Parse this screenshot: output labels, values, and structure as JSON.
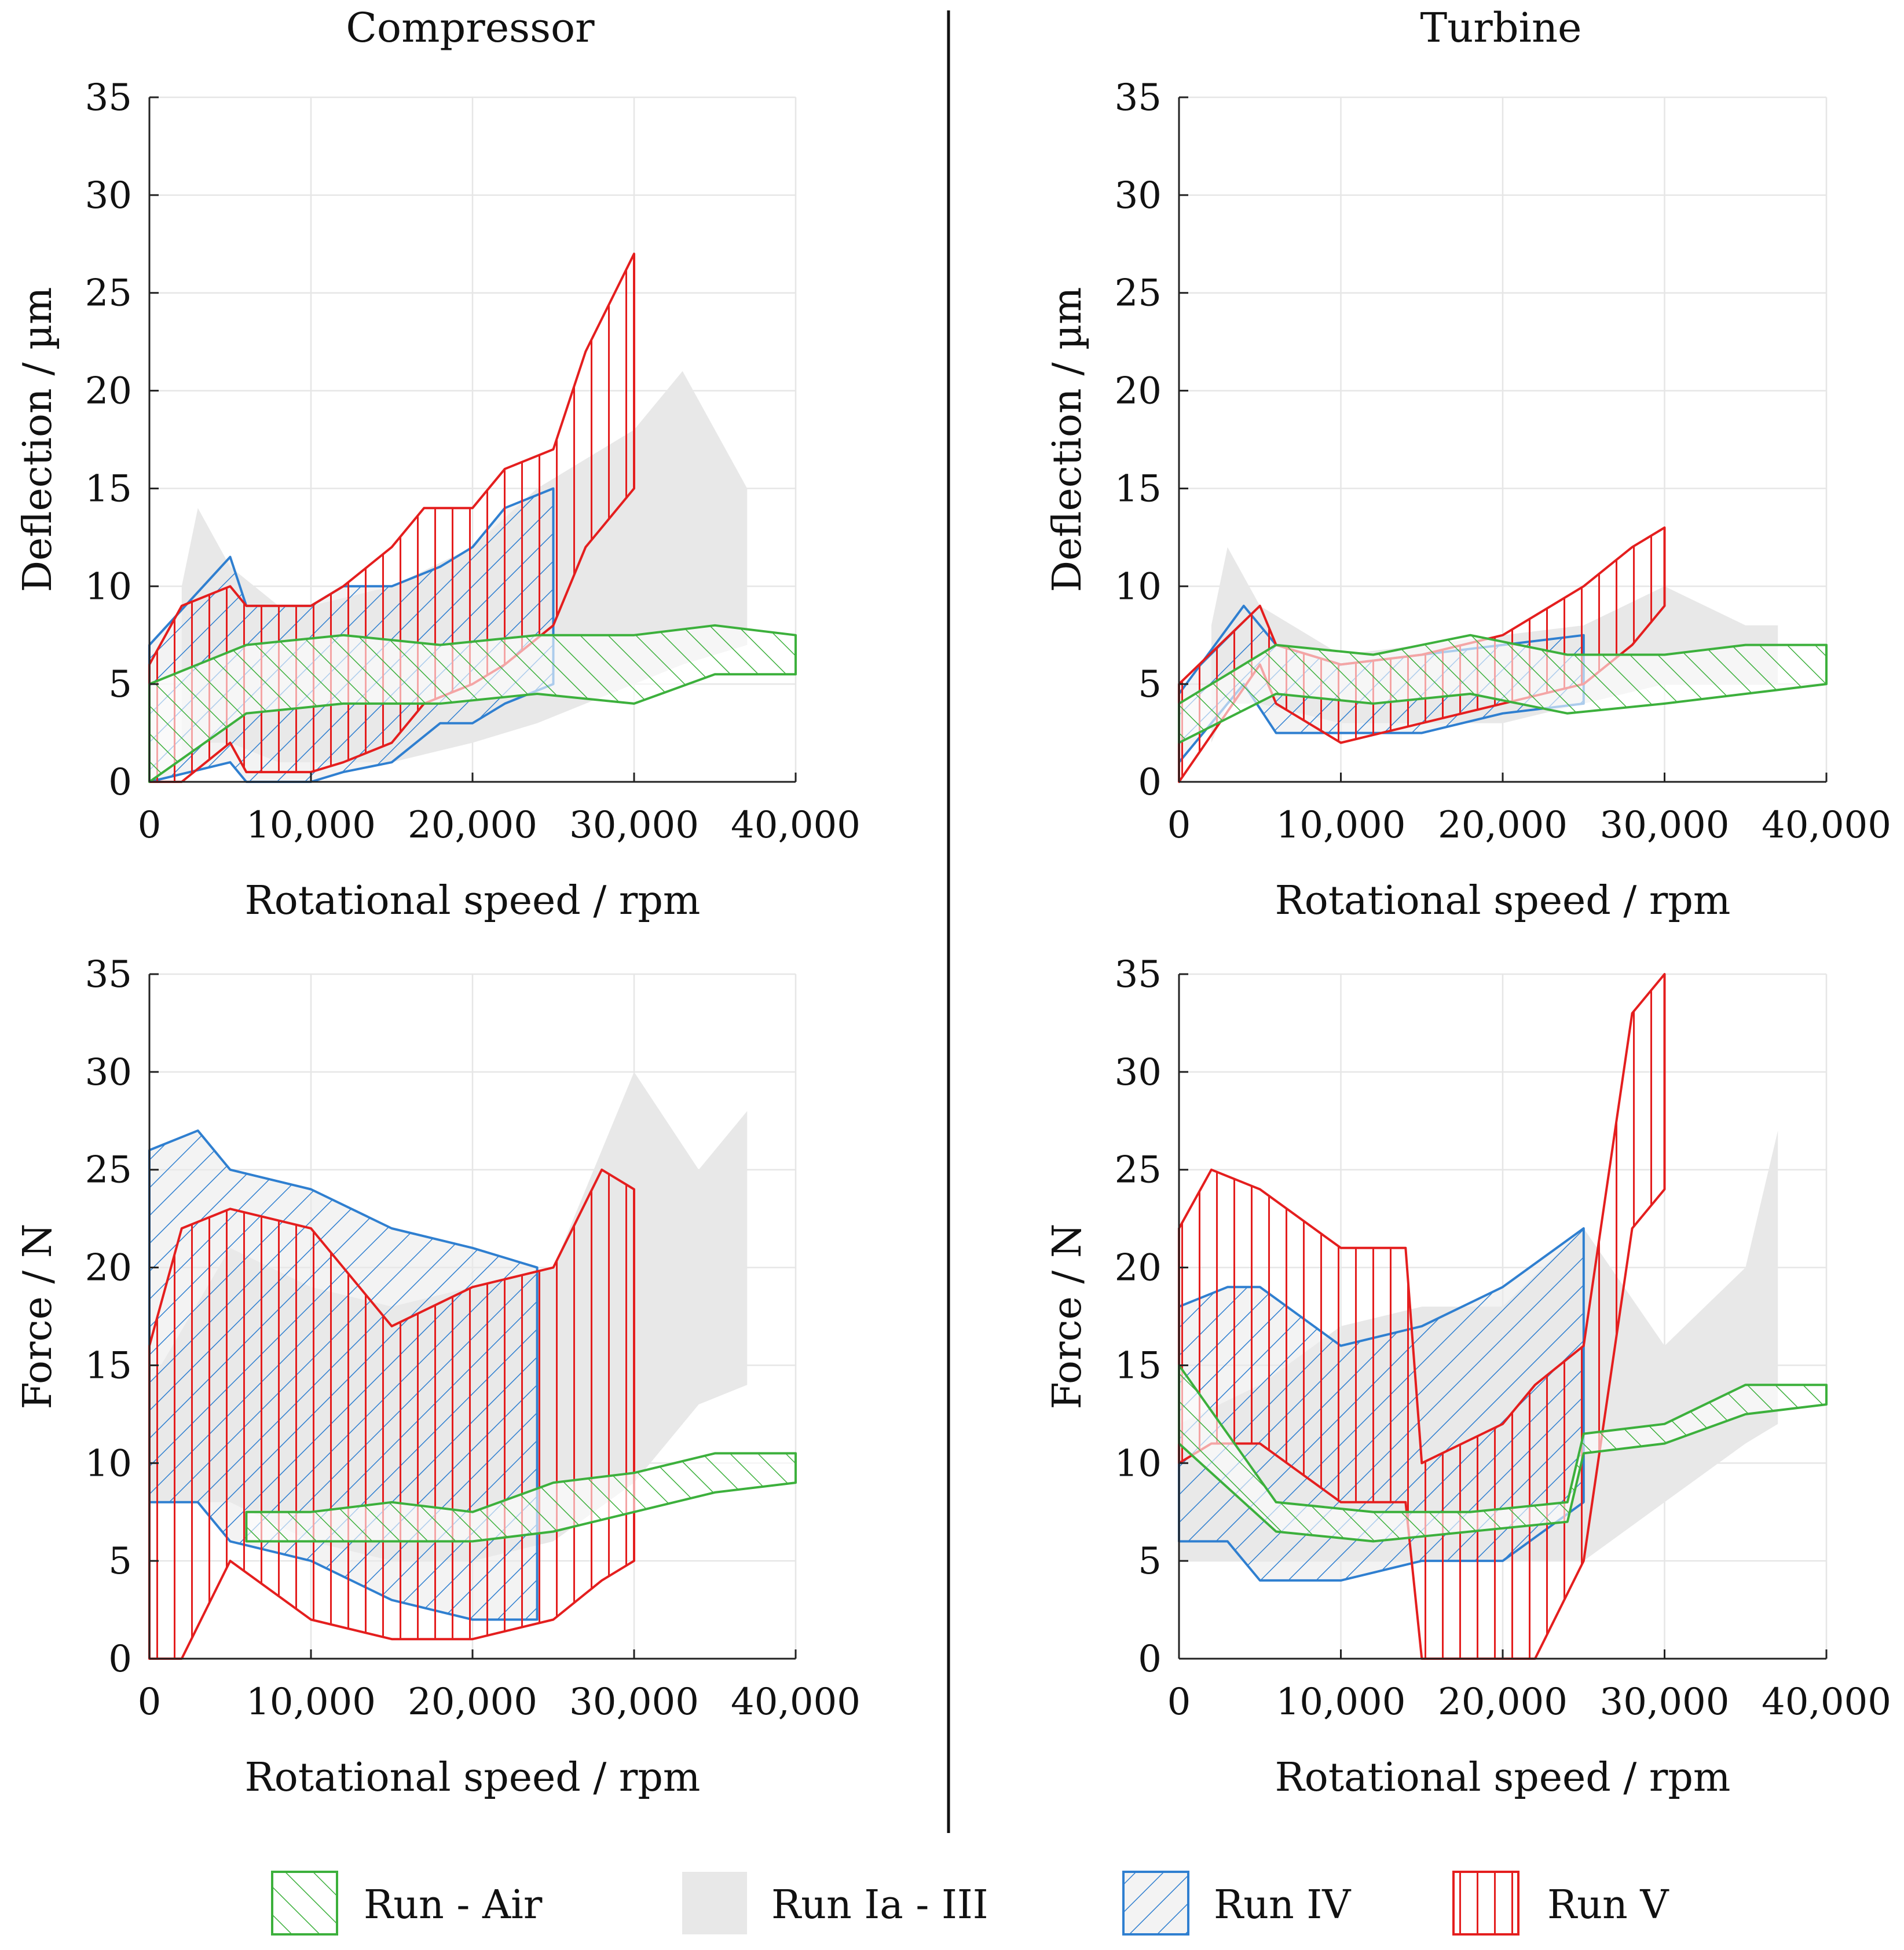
{
  "colors": {
    "air": "#3cb03c",
    "run123": "#e8e8e8",
    "run4": "#2f7fd0",
    "run5": "#e41e1e"
  },
  "legend": [
    {
      "key": "air",
      "label": "Run - Air",
      "pattern": "hatch-air"
    },
    {
      "key": "run123",
      "label": "Run Ia - III",
      "pattern": "solid-gray"
    },
    {
      "key": "run4",
      "label": "Run IV",
      "pattern": "hatch-blue"
    },
    {
      "key": "run5",
      "label": "Run V",
      "pattern": "hatch-red"
    }
  ],
  "chart_data": [
    {
      "id": "compressor-deflection",
      "type": "area",
      "column_title": "Compressor",
      "xlabel": "Rotational speed / rpm",
      "ylabel": "Deflection / µm",
      "xlim": [
        0,
        40000
      ],
      "ylim": [
        0,
        35
      ],
      "xticks": [
        "0",
        "10,000",
        "20,000",
        "30,000",
        "40,000"
      ],
      "yticks": [
        "0",
        "5",
        "10",
        "15",
        "20",
        "25",
        "30",
        "35"
      ],
      "series": [
        {
          "name": "Run Ia - III",
          "x": [
            2000,
            3000,
            5000,
            8000,
            10000,
            15000,
            20000,
            24000,
            30000,
            33000,
            37000
          ],
          "lower": [
            1,
            2,
            2,
            1,
            1,
            1,
            2,
            3,
            5,
            6,
            7
          ],
          "upper": [
            10,
            14,
            11,
            9,
            9,
            10,
            12,
            15,
            18,
            21,
            15
          ]
        },
        {
          "name": "Run IV",
          "x": [
            0,
            5000,
            6000,
            10000,
            12000,
            15000,
            18000,
            20000,
            22000,
            25000
          ],
          "lower": [
            0,
            1,
            0,
            0,
            0.5,
            1,
            3,
            3,
            4,
            5
          ],
          "upper": [
            7,
            11.5,
            9,
            9,
            10,
            10,
            11,
            12,
            14,
            15
          ]
        },
        {
          "name": "Run V",
          "x": [
            0,
            2000,
            5000,
            6000,
            10000,
            12000,
            15000,
            17000,
            20000,
            22000,
            25000,
            27000,
            30000
          ],
          "lower": [
            0,
            0,
            2,
            0.5,
            0.5,
            1,
            2,
            4,
            5,
            6,
            8,
            12,
            15
          ],
          "upper": [
            6,
            9,
            10,
            9,
            9,
            10,
            12,
            14,
            14,
            16,
            17,
            22,
            27
          ]
        },
        {
          "name": "Run - Air",
          "x": [
            0,
            6000,
            12000,
            18000,
            24000,
            30000,
            35000,
            40000
          ],
          "lower": [
            0,
            3.5,
            4,
            4,
            4.5,
            4,
            5.5,
            5.5
          ],
          "upper": [
            5,
            7,
            7.5,
            7,
            7.5,
            7.5,
            8,
            7.5
          ]
        }
      ]
    },
    {
      "id": "turbine-deflection",
      "type": "area",
      "column_title": "Turbine",
      "xlabel": "Rotational speed / rpm",
      "ylabel": "Deflection / µm",
      "xlim": [
        0,
        40000
      ],
      "ylim": [
        0,
        35
      ],
      "xticks": [
        "0",
        "10,000",
        "20,000",
        "30,000",
        "40,000"
      ],
      "yticks": [
        "0",
        "5",
        "10",
        "15",
        "20",
        "25",
        "30",
        "35"
      ],
      "series": [
        {
          "name": "Run Ia - III",
          "x": [
            2000,
            3000,
            5000,
            10000,
            15000,
            20000,
            25000,
            30000,
            35000,
            37000
          ],
          "lower": [
            2,
            4,
            4,
            3,
            3,
            3,
            4,
            5,
            5,
            5
          ],
          "upper": [
            8,
            12,
            9,
            6.5,
            7,
            7.5,
            8,
            10,
            8,
            8
          ]
        },
        {
          "name": "Run IV",
          "x": [
            0,
            4000,
            6000,
            10000,
            15000,
            20000,
            25000
          ],
          "lower": [
            1,
            5,
            2.5,
            2.5,
            2.5,
            3.5,
            4
          ],
          "upper": [
            4.5,
            9,
            7,
            6,
            6.5,
            7,
            7.5
          ]
        },
        {
          "name": "Run V",
          "x": [
            0,
            5000,
            6000,
            10000,
            15000,
            20000,
            25000,
            28000,
            30000
          ],
          "lower": [
            0,
            6,
            4,
            2,
            3,
            4,
            5,
            7,
            9
          ],
          "upper": [
            5,
            9,
            7,
            6,
            6.5,
            7.5,
            10,
            12,
            13
          ]
        },
        {
          "name": "Run - Air",
          "x": [
            0,
            6000,
            12000,
            18000,
            24000,
            30000,
            35000,
            40000
          ],
          "lower": [
            2,
            4.5,
            4,
            4.5,
            3.5,
            4,
            4.5,
            5
          ],
          "upper": [
            4,
            7,
            6.5,
            7.5,
            6.5,
            6.5,
            7,
            7
          ]
        }
      ]
    },
    {
      "id": "compressor-force",
      "type": "area",
      "column_title": "",
      "xlabel": "Rotational speed / rpm",
      "ylabel": "Force / N",
      "xlim": [
        0,
        40000
      ],
      "ylim": [
        0,
        35
      ],
      "xticks": [
        "0",
        "10,000",
        "20,000",
        "30,000",
        "40,000"
      ],
      "yticks": [
        "0",
        "5",
        "10",
        "15",
        "20",
        "25",
        "30",
        "35"
      ],
      "series": [
        {
          "name": "Run Ia - III",
          "x": [
            0,
            5000,
            10000,
            15000,
            20000,
            25000,
            30000,
            34000,
            37000
          ],
          "lower": [
            8,
            8,
            6,
            5,
            5,
            6,
            9,
            13,
            14
          ],
          "upper": [
            14,
            21,
            19,
            18,
            19,
            20,
            30,
            25,
            28
          ]
        },
        {
          "name": "Run IV",
          "x": [
            0,
            3000,
            5000,
            10000,
            15000,
            20000,
            24000
          ],
          "lower": [
            8,
            8,
            6,
            5,
            3,
            2,
            2
          ],
          "upper": [
            26,
            27,
            25,
            24,
            22,
            21,
            20
          ]
        },
        {
          "name": "Run V",
          "x": [
            0,
            2000,
            5000,
            10000,
            15000,
            20000,
            25000,
            28000,
            30000
          ],
          "lower": [
            0,
            0,
            5,
            2,
            1,
            1,
            2,
            4,
            5
          ],
          "upper": [
            16,
            22,
            23,
            22,
            17,
            19,
            20,
            25,
            24
          ]
        },
        {
          "name": "Run - Air",
          "x": [
            6000,
            10000,
            15000,
            20000,
            25000,
            30000,
            35000,
            40000
          ],
          "lower": [
            6,
            6,
            6,
            6,
            6.5,
            7.5,
            8.5,
            9
          ],
          "upper": [
            7.5,
            7.5,
            8,
            7.5,
            9,
            9.5,
            10.5,
            10.5
          ]
        }
      ]
    },
    {
      "id": "turbine-force",
      "type": "area",
      "column_title": "",
      "xlabel": "Rotational speed / rpm",
      "ylabel": "Force / N",
      "xlim": [
        0,
        40000
      ],
      "ylim": [
        0,
        35
      ],
      "xticks": [
        "0",
        "10,000",
        "20,000",
        "30,000",
        "40,000"
      ],
      "yticks": [
        "0",
        "5",
        "10",
        "15",
        "20",
        "25",
        "30",
        "35"
      ],
      "series": [
        {
          "name": "Run Ia - III",
          "x": [
            0,
            5000,
            10000,
            15000,
            20000,
            25000,
            30000,
            35000,
            37000
          ],
          "lower": [
            5,
            5,
            5,
            5,
            5,
            5,
            8,
            11,
            12
          ],
          "upper": [
            12,
            14,
            17,
            18,
            18,
            22,
            16,
            20,
            27
          ]
        },
        {
          "name": "Run IV",
          "x": [
            0,
            3000,
            5000,
            10000,
            15000,
            20000,
            25000
          ],
          "lower": [
            6,
            6,
            4,
            4,
            5,
            5,
            8
          ],
          "upper": [
            18,
            19,
            19,
            16,
            17,
            19,
            22
          ]
        },
        {
          "name": "Run V",
          "x": [
            0,
            2000,
            5000,
            10000,
            14000,
            15000,
            20000,
            22000,
            25000,
            28000,
            30000
          ],
          "lower": [
            10,
            11,
            11,
            8,
            8,
            0,
            0,
            0,
            5,
            22,
            24
          ],
          "upper": [
            22,
            25,
            24,
            21,
            21,
            10,
            12,
            14,
            16,
            33,
            35
          ]
        },
        {
          "name": "Run - Air",
          "x": [
            0,
            6000,
            12000,
            18000,
            24000,
            25000,
            30000,
            35000,
            40000
          ],
          "lower": [
            11,
            6.5,
            6,
            6.5,
            7,
            10.5,
            11,
            12.5,
            13
          ],
          "upper": [
            15,
            8,
            7.5,
            7.5,
            8,
            11.5,
            12,
            14,
            14
          ]
        }
      ]
    }
  ]
}
